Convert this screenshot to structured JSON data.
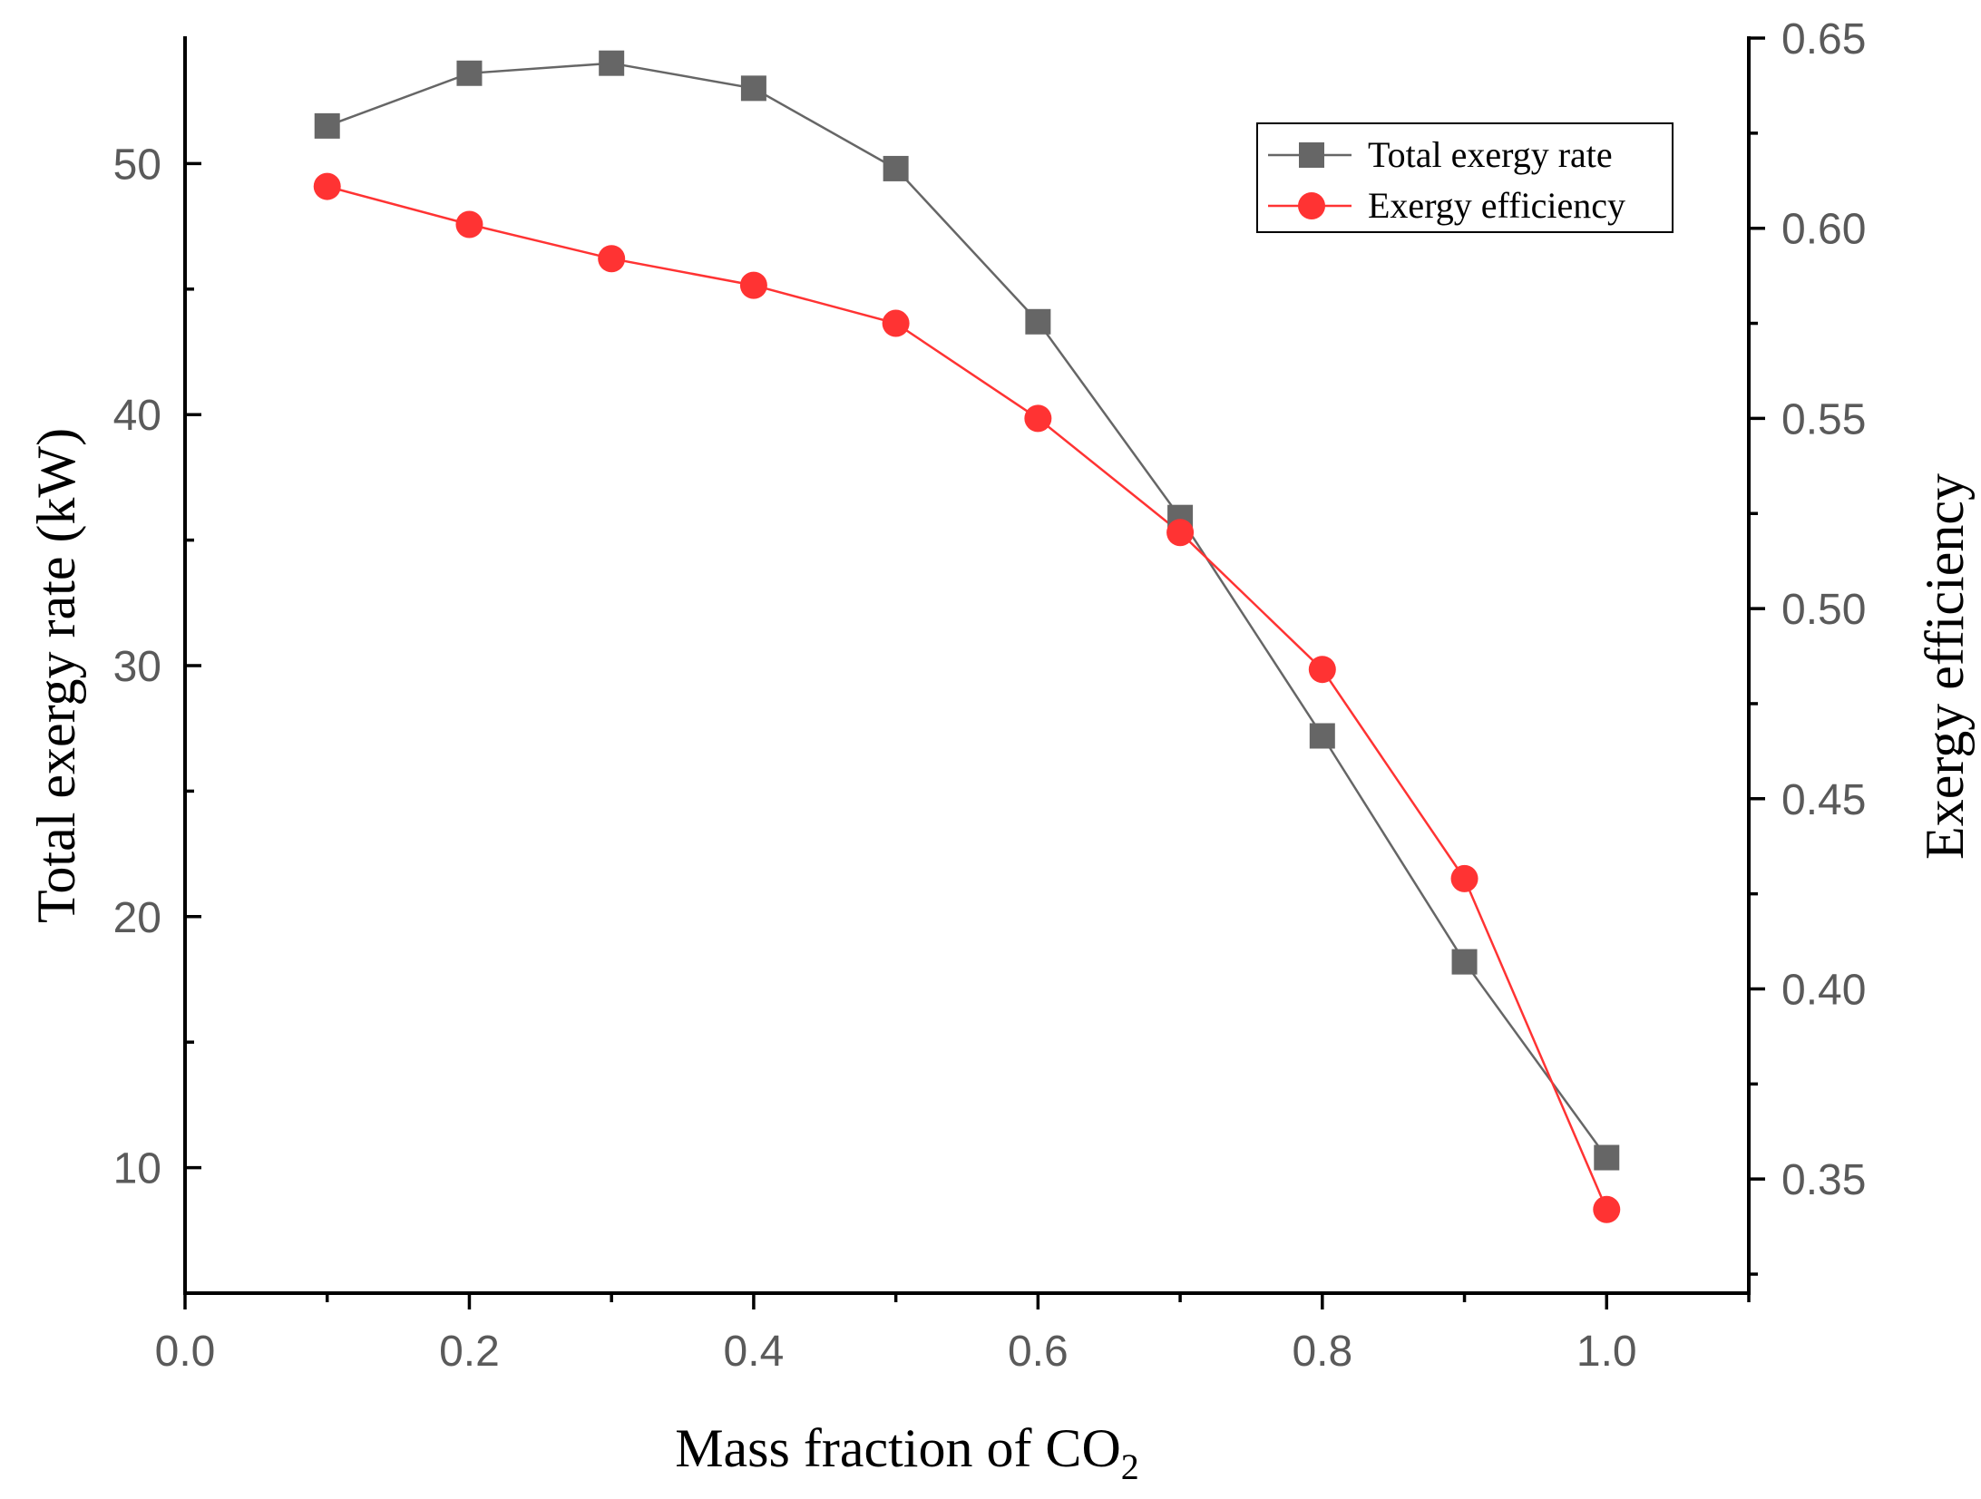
{
  "chart_data": {
    "type": "line",
    "title": "",
    "xlabel": "Mass fraction of CO",
    "xlabel_subscript": "2",
    "ylabel_left": "Total exergy rate (kW)",
    "ylabel_right": "Exergy efficiency",
    "xlim": [
      0.0,
      1.1
    ],
    "ylim_left": [
      5,
      55
    ],
    "ylim_right": [
      0.32,
      0.65
    ],
    "x_ticks": [
      "0.0",
      "0.2",
      "0.4",
      "0.6",
      "0.8",
      "1.0"
    ],
    "y_left_ticks": [
      "10",
      "20",
      "30",
      "40",
      "50"
    ],
    "y_right_ticks": [
      "0.35",
      "0.40",
      "0.45",
      "0.50",
      "0.55",
      "0.60",
      "0.65"
    ],
    "grid": false,
    "legend_position": "top-right",
    "x": [
      0.1,
      0.2,
      0.3,
      0.4,
      0.5,
      0.6,
      0.7,
      0.8,
      0.9,
      1.0
    ],
    "series": [
      {
        "name": "Total exergy rate",
        "axis": "left",
        "marker": "square",
        "color": "#666666",
        "values": [
          51.5,
          53.6,
          54.0,
          53.0,
          49.8,
          43.7,
          35.9,
          27.2,
          18.2,
          10.4
        ]
      },
      {
        "name": "Exergy efficiency",
        "axis": "right",
        "marker": "circle",
        "color": "#ff3333",
        "values": [
          0.611,
          0.601,
          0.592,
          0.585,
          0.575,
          0.55,
          0.52,
          0.484,
          0.429,
          0.342
        ]
      }
    ]
  }
}
